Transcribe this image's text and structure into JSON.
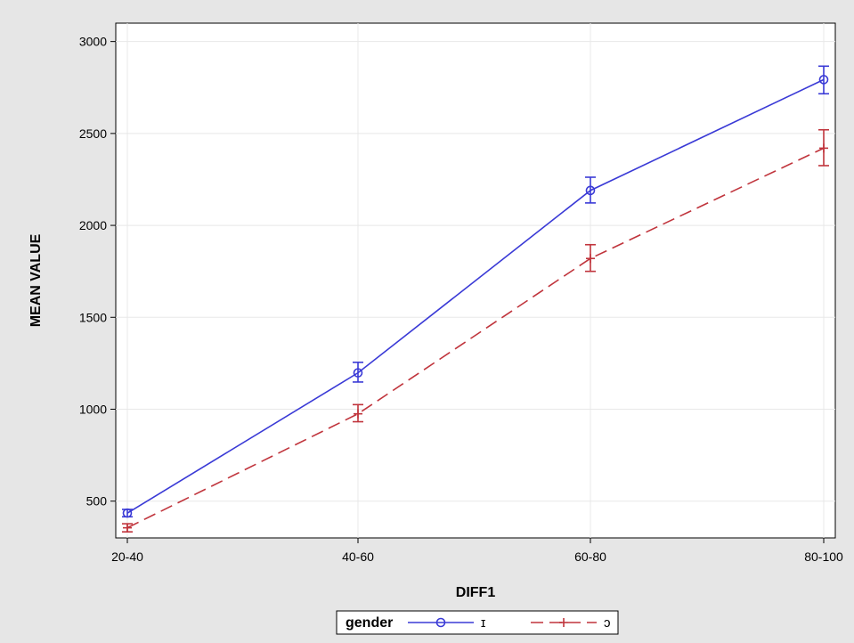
{
  "chart_data": {
    "type": "line",
    "title": "",
    "xlabel": "DIFF1",
    "ylabel": "MEAN VALUE",
    "categories": [
      "20-40",
      "40-60",
      "60-80",
      "80-100"
    ],
    "ylim": [
      300,
      3100
    ],
    "yticks": [
      500,
      1000,
      1500,
      2000,
      2500,
      3000
    ],
    "grid": true,
    "legend": {
      "title": "gender",
      "placement": "bottom-center"
    },
    "series": [
      {
        "name": "ɪ",
        "color": "#3a3ad6",
        "line_style": "solid",
        "marker": "circle",
        "values": [
          435,
          1198,
          2190,
          2793
        ],
        "error_low": [
          415,
          1148,
          2122,
          2716
        ],
        "error_high": [
          455,
          1255,
          2262,
          2866
        ]
      },
      {
        "name": "ɔ",
        "color": "#c0343c",
        "line_style": "dashed",
        "marker": "plus",
        "values": [
          355,
          975,
          1820,
          2420
        ],
        "error_low": [
          333,
          932,
          1750,
          2325
        ],
        "error_high": [
          377,
          1025,
          1895,
          2520
        ]
      }
    ]
  }
}
